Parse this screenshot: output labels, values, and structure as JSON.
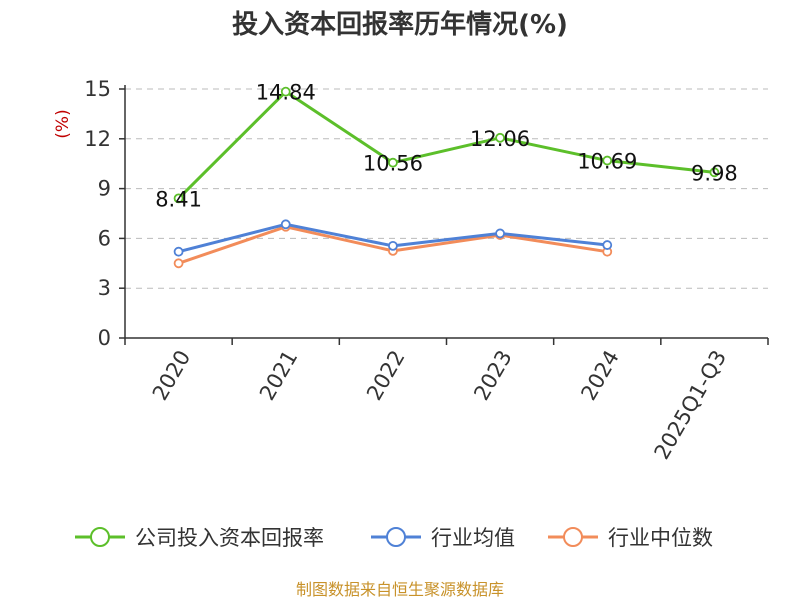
{
  "chart_data": {
    "type": "line",
    "title": "投入资本回报率历年情况(%)",
    "ylabel": "(%)",
    "xlabel": "",
    "categories": [
      "2020",
      "2021",
      "2022",
      "2023",
      "2024",
      "2025Q1-Q3"
    ],
    "ylim": [
      0,
      15
    ],
    "yticks": [
      0,
      3,
      6,
      9,
      12,
      15
    ],
    "grid": true,
    "legend_position": "bottom",
    "series": [
      {
        "name": "公司投入资本回报率",
        "color": "#5cbf2a",
        "values": [
          8.41,
          14.84,
          10.56,
          12.06,
          10.69,
          9.98
        ],
        "labels": [
          "8.41",
          "14.84",
          "10.56",
          "12.06",
          "10.69",
          "9.98"
        ]
      },
      {
        "name": "行业均值",
        "color": "#4f81d6",
        "values": [
          5.2,
          6.85,
          5.55,
          6.3,
          5.6,
          null
        ]
      },
      {
        "name": "行业中位数",
        "color": "#f28c5a",
        "values": [
          4.5,
          6.7,
          5.25,
          6.2,
          5.2,
          null
        ]
      }
    ]
  },
  "source": "制图数据来自恒生聚源数据库"
}
